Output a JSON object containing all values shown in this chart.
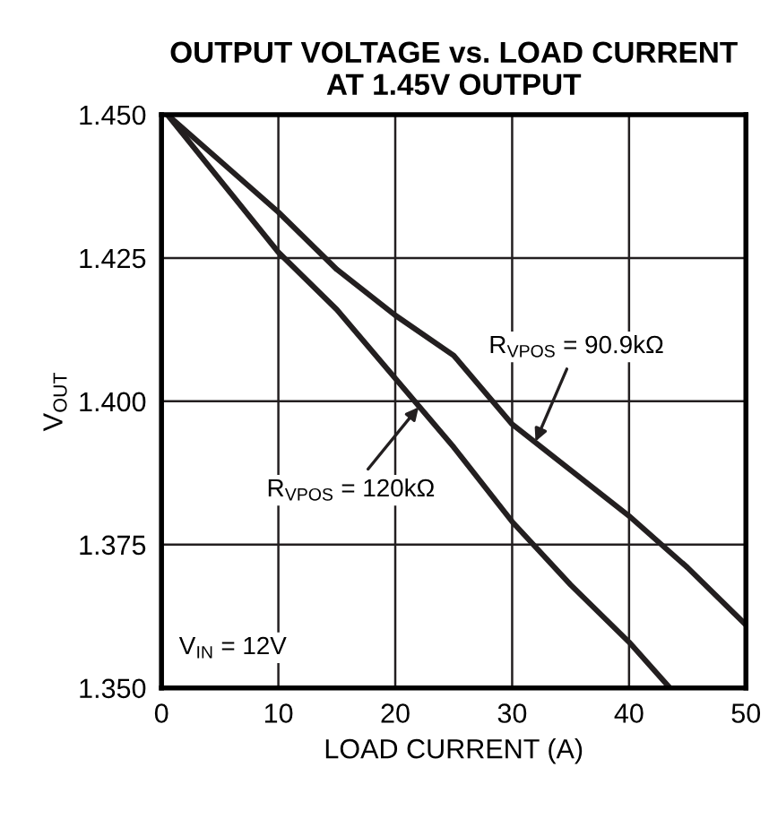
{
  "chart_data": {
    "type": "line",
    "title": "OUTPUT VOLTAGE vs. LOAD CURRENT\nAT 1.45V OUTPUT",
    "xlabel": "LOAD CURRENT (A)",
    "ylabel": "V$_{OUT}$",
    "xlim": [
      0,
      50
    ],
    "ylim": [
      1.35,
      1.45
    ],
    "xticks": [
      0,
      10,
      20,
      30,
      40,
      50
    ],
    "yticks": [
      {
        "value": 1.35,
        "label": "1.350"
      },
      {
        "value": 1.375,
        "label": "1.375"
      },
      {
        "value": 1.4,
        "label": "1.400"
      },
      {
        "value": 1.425,
        "label": "1.425"
      },
      {
        "value": 1.45,
        "label": "1.450"
      }
    ],
    "grid": true,
    "line_style": "solid",
    "marker": "none",
    "series": [
      {
        "color": "#231f20",
        "x": [
          0.5,
          10,
          15,
          20,
          25,
          30,
          35,
          40,
          45,
          50
        ],
        "values": [
          1.45,
          1.433,
          1.423,
          1.415,
          1.408,
          1.396,
          1.388,
          1.38,
          1.371,
          1.361
        ]
      },
      {
        "color": "#231f20",
        "x": [
          0.5,
          10,
          15,
          20,
          25,
          30,
          35,
          40,
          43.5
        ],
        "values": [
          1.45,
          1.426,
          1.416,
          1.404,
          1.392,
          1.379,
          1.368,
          1.358,
          1.35
        ]
      }
    ],
    "annotations": [
      {
        "text": "R$_{VPOS}$ = 90.9kΩ",
        "x": 32,
        "y": 1.393
      },
      {
        "text": "R$_{VPOS}$ = 120kΩ",
        "x": 22,
        "y": 1.399
      },
      "V$_{IN}$ = 12V"
    ]
  }
}
